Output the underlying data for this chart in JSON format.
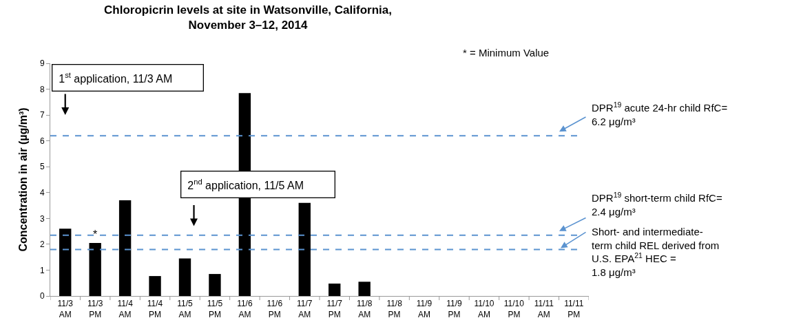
{
  "chart_data": {
    "type": "bar",
    "title": "Chloropicrin levels at site in Watsonville, California,\nNovember 3–12, 2014",
    "ylabel": "Concentration in air (µg/m³)",
    "categories": [
      "11/3 AM",
      "11/3 PM",
      "11/4 AM",
      "11/4 PM",
      "11/5 AM",
      "11/5 PM",
      "11/6 AM",
      "11/6 PM",
      "11/7 AM",
      "11/7 PM",
      "11/8 AM",
      "11/8 PM",
      "11/9 AM",
      "11/9 PM",
      "11/10 AM",
      "11/10 PM",
      "11/11 AM",
      "11/11 PM"
    ],
    "values": [
      2.6,
      2.05,
      3.7,
      0.77,
      1.45,
      0.85,
      7.85,
      null,
      3.6,
      0.48,
      0.55,
      null,
      null,
      null,
      null,
      null,
      null,
      null
    ],
    "color": "#000000",
    "ylim": [
      0,
      9
    ],
    "yticks": [
      0,
      1,
      2,
      3,
      4,
      5,
      6,
      7,
      8,
      9
    ],
    "grid": false,
    "ref_lines": [
      {
        "axis": "y",
        "value": 6.2,
        "label": "DPR$^{19}$ acute 24-hr child RfC=\n6.2 μg/m³",
        "color": "#5b93d0",
        "line_style": "dashed"
      },
      {
        "axis": "y",
        "value": 2.35,
        "label": "DPR$^{19}$ short-term child RfC=\n2.4 μg/m³",
        "color": "#5b93d0",
        "line_style": "dashed"
      },
      {
        "axis": "y",
        "value": 1.8,
        "label": "Short- and intermediate-\nterm child REL derived from\nU.S. EPA$^{21}$ HEC =\n1.8 μg/m³",
        "color": "#5b93d0",
        "line_style": "dashed"
      }
    ],
    "annotations": [
      "1$^{st}$ application, 11/3 AM",
      "2$^{nd}$ application, 11/5 AM",
      "*",
      "* = Minimum Value"
    ]
  }
}
